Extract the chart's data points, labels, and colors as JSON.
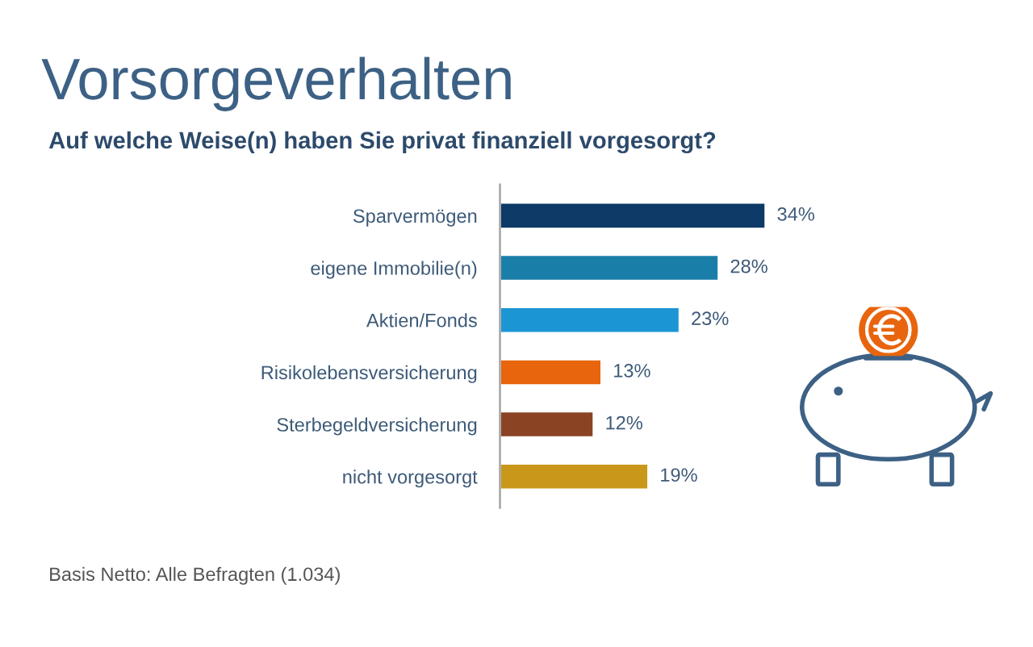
{
  "chart_data": {
    "type": "bar",
    "orientation": "horizontal",
    "title": "Vorsorgeverhalten",
    "subtitle": "Auf welche Weise(n) haben Sie privat finanziell vorgesorgt?",
    "categories": [
      "Sparvermögen",
      "eigene Immobilie(n)",
      "Aktien/Fonds",
      "Risikolebensversicherung",
      "Sterbegeldversicherung",
      "nicht vorgesorgt"
    ],
    "values": [
      34,
      28,
      23,
      13,
      12,
      19
    ],
    "colors": [
      "#0d3a66",
      "#1a7fa8",
      "#1c95d4",
      "#e8650e",
      "#8a4424",
      "#c9981a"
    ],
    "value_labels": [
      "34%",
      "28%",
      "23%",
      "13%",
      "12%",
      "19%"
    ],
    "tick_labels": "y",
    "grid": false,
    "legend": false,
    "annotations": [
      "Basis Netto: Alle Befragten (1.034)"
    ]
  }
}
